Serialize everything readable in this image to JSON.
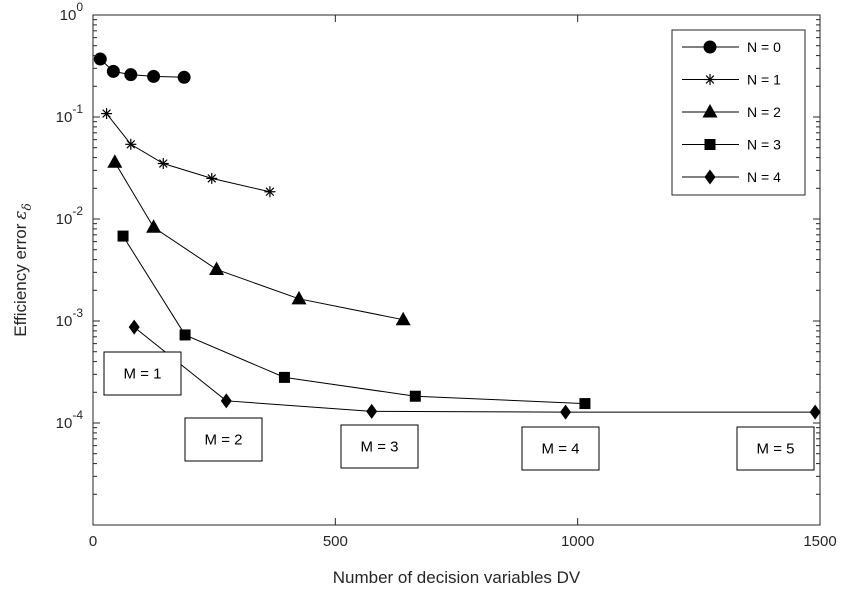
{
  "chart_data": {
    "type": "line",
    "xlabel": "Number of decision variables DV",
    "ylabel": "Efficiency error",
    "ylabel_symbol": "ε",
    "ylabel_subscript": "δ",
    "xlim": [
      0,
      1500
    ],
    "ylim": [
      1e-05,
      1
    ],
    "yscale": "log",
    "xticks": [
      "0",
      "500",
      "1000",
      "1500"
    ],
    "yticks": [
      {
        "base": "10",
        "exp": "0"
      },
      {
        "base": "10",
        "exp": "-1"
      },
      {
        "base": "10",
        "exp": "-2"
      },
      {
        "base": "10",
        "exp": "-3"
      },
      {
        "base": "10",
        "exp": "-4"
      }
    ],
    "grid": false,
    "legend_position": "top-right",
    "series": [
      {
        "name": "N = 0",
        "marker": "circle",
        "x": [
          15,
          42,
          78,
          125,
          188
        ],
        "y": [
          0.37,
          0.28,
          0.26,
          0.25,
          0.245
        ]
      },
      {
        "name": "N = 1",
        "marker": "asterisk",
        "x": [
          28,
          78,
          145,
          245,
          365
        ],
        "y": [
          0.108,
          0.054,
          0.035,
          0.025,
          0.0185
        ]
      },
      {
        "name": "N = 2",
        "marker": "triangle",
        "x": [
          45,
          125,
          255,
          425,
          640
        ],
        "y": [
          0.036,
          0.0083,
          0.0032,
          0.00165,
          0.00103
        ]
      },
      {
        "name": "N = 3",
        "marker": "square",
        "x": [
          62,
          190,
          395,
          665,
          1015
        ],
        "y": [
          0.0068,
          0.00073,
          0.00028,
          0.000183,
          0.000155
        ]
      },
      {
        "name": "N = 4",
        "marker": "diamond",
        "x": [
          85,
          275,
          575,
          975,
          1490
        ],
        "y": [
          0.00087,
          0.000165,
          0.00013,
          0.000128,
          0.000128
        ]
      }
    ],
    "annotations": [
      "M = 1",
      "M = 2",
      "M = 3",
      "M = 4",
      "M = 5"
    ]
  }
}
